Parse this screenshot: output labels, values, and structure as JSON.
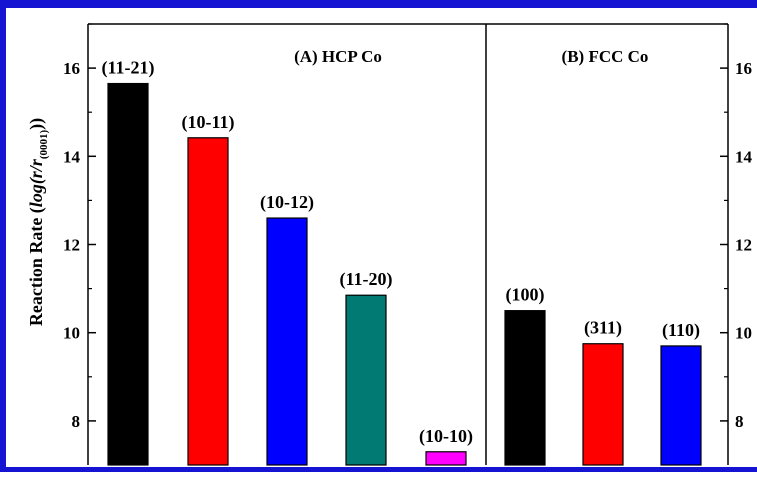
{
  "chart_data": [
    {
      "type": "bar",
      "panel_title": "(A) HCP Co",
      "ylabel": "Reaction Rate (log(r/r(0001)))",
      "ylabel_main": "Reaction Rate (",
      "ylabel_italic": "log(r/r",
      "ylabel_sub": "(0001)",
      "ylabel_close": "))",
      "ylim": [
        7,
        17
      ],
      "yticks": [
        8,
        10,
        12,
        14,
        16
      ],
      "categories": [
        "(11-21)",
        "(10-11)",
        "(10-12)",
        "(11-20)",
        "(10-10)"
      ],
      "values": [
        15.65,
        14.42,
        12.6,
        10.85,
        7.3
      ],
      "colors": [
        "#000000",
        "#ff0000",
        "#0000ff",
        "#007a73",
        "#ff00ff"
      ]
    },
    {
      "type": "bar",
      "panel_title": "(B) FCC Co",
      "ylim": [
        7,
        17
      ],
      "yticks": [
        8,
        10,
        12,
        14,
        16
      ],
      "categories": [
        "(100)",
        "(311)",
        "(110)"
      ],
      "values": [
        10.5,
        9.75,
        9.7
      ],
      "colors": [
        "#000000",
        "#ff0000",
        "#0000ff"
      ]
    }
  ],
  "frame_color": "#1414d2"
}
